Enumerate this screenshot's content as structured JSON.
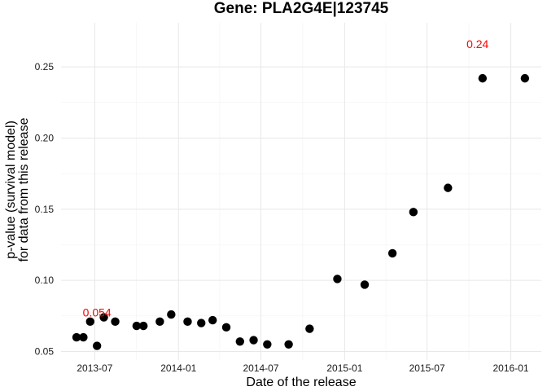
{
  "chart_data": {
    "type": "scatter",
    "title": "Gene: PLA2G4E|123745",
    "xlabel": "Date of the release",
    "ylabel_lines": [
      "p-value (survival model)",
      "for data from this release"
    ],
    "x_ticks": [
      "2013-07-01",
      "2014-01-01",
      "2014-07-01",
      "2015-01-01",
      "2015-07-01",
      "2016-01-01"
    ],
    "x_tick_labels": [
      "2013-07",
      "2014-01",
      "2014-07",
      "2015-01",
      "2015-07",
      "2016-01"
    ],
    "y_ticks": [
      0.05,
      0.1,
      0.15,
      0.2,
      0.25
    ],
    "y_tick_labels": [
      "0.05",
      "0.10",
      "0.15",
      "0.20",
      "0.25"
    ],
    "xlim": [
      "2013-04-18",
      "2016-03-08"
    ],
    "ylim": [
      0.044,
      0.281
    ],
    "grid": true,
    "point_color": "#000000",
    "annotation_color": "#ff0000",
    "points": [
      {
        "x": "2013-05-22",
        "y": 0.06
      },
      {
        "x": "2013-06-06",
        "y": 0.06
      },
      {
        "x": "2013-06-21",
        "y": 0.071
      },
      {
        "x": "2013-07-06",
        "y": 0.054
      },
      {
        "x": "2013-07-21",
        "y": 0.074
      },
      {
        "x": "2013-08-15",
        "y": 0.071
      },
      {
        "x": "2013-10-01",
        "y": 0.068
      },
      {
        "x": "2013-10-16",
        "y": 0.068
      },
      {
        "x": "2013-11-21",
        "y": 0.071
      },
      {
        "x": "2013-12-16",
        "y": 0.076
      },
      {
        "x": "2014-01-21",
        "y": 0.071
      },
      {
        "x": "2014-02-20",
        "y": 0.07
      },
      {
        "x": "2014-03-17",
        "y": 0.072
      },
      {
        "x": "2014-04-16",
        "y": 0.067
      },
      {
        "x": "2014-05-16",
        "y": 0.057
      },
      {
        "x": "2014-06-15",
        "y": 0.058
      },
      {
        "x": "2014-07-15",
        "y": 0.055
      },
      {
        "x": "2014-08-31",
        "y": 0.055
      },
      {
        "x": "2014-10-16",
        "y": 0.066
      },
      {
        "x": "2014-12-16",
        "y": 0.101
      },
      {
        "x": "2015-02-14",
        "y": 0.097
      },
      {
        "x": "2015-04-16",
        "y": 0.119
      },
      {
        "x": "2015-06-01",
        "y": 0.148
      },
      {
        "x": "2015-08-16",
        "y": 0.165
      },
      {
        "x": "2015-10-31",
        "y": 0.242
      },
      {
        "x": "2016-02-01",
        "y": 0.242
      }
    ],
    "annotations": [
      {
        "text": "0.054",
        "x": "2013-07-06",
        "y": 0.0775
      },
      {
        "text": "0.24",
        "x": "2015-10-20",
        "y": 0.266
      }
    ]
  }
}
